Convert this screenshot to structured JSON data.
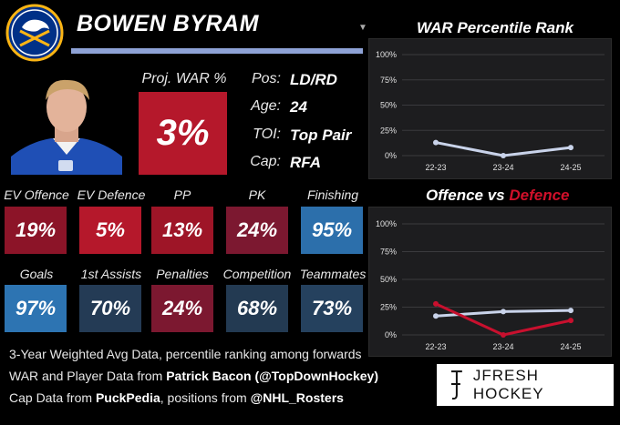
{
  "player": {
    "name": "BOWEN BYRAM"
  },
  "team_logo": {
    "icon": "sabres-logo-icon",
    "colors": {
      "navy": "#003087",
      "gold": "#fcb514"
    }
  },
  "proj_war": {
    "label": "Proj. WAR %",
    "value": "3%"
  },
  "info": [
    {
      "label": "Pos:",
      "value": "LD/RD"
    },
    {
      "label": "Age:",
      "value": "24"
    },
    {
      "label": "TOI:",
      "value": "Top Pair"
    },
    {
      "label": "Cap:",
      "value": "RFA"
    }
  ],
  "stats": [
    {
      "label": "EV Offence",
      "value": "19%",
      "color": "#8c1428"
    },
    {
      "label": "EV Defence",
      "value": "5%",
      "color": "#b5182b"
    },
    {
      "label": "PP",
      "value": "13%",
      "color": "#9e1527"
    },
    {
      "label": "PK",
      "value": "24%",
      "color": "#7c1830"
    },
    {
      "label": "Finishing",
      "value": "95%",
      "color": "#2c6fab"
    },
    {
      "label": "Goals",
      "value": "97%",
      "color": "#2d74b2"
    },
    {
      "label": "1st Assists",
      "value": "70%",
      "color": "#243b55"
    },
    {
      "label": "Penalties",
      "value": "24%",
      "color": "#7c1830"
    },
    {
      "label": "Competition",
      "value": "68%",
      "color": "#233a52"
    },
    {
      "label": "Teammates",
      "value": "73%",
      "color": "#25415e"
    }
  ],
  "footnotes": {
    "line1": "3-Year Weighted Avg Data, percentile ranking among forwards",
    "line2_prefix": "WAR and Player Data from ",
    "line2_bold": "Patrick Bacon (@TopDownHockey)",
    "line3_prefix": "Cap Data from ",
    "line3_bold": "PuckPedia",
    "line3_suffix": ", positions from ",
    "line3_bold2": "@NHL_Rosters"
  },
  "brand": {
    "text": "JFRESH HOCKEY"
  },
  "war_chart": {
    "title": "WAR Percentile Rank"
  },
  "ovd_chart": {
    "title_part1": "Offence",
    "title_part2": " vs ",
    "title_part3": "Defence"
  },
  "chart_data": [
    {
      "type": "line",
      "title": "WAR Percentile Rank",
      "categories": [
        "22-23",
        "23-24",
        "24-25"
      ],
      "series": [
        {
          "name": "WAR",
          "values": [
            13,
            0,
            8
          ],
          "color": "#c9d3ea"
        }
      ],
      "y_ticks": [
        "0%",
        "25%",
        "50%",
        "75%",
        "100%"
      ],
      "ylim": [
        0,
        100
      ]
    },
    {
      "type": "line",
      "title": "Offence vs Defence",
      "categories": [
        "22-23",
        "23-24",
        "24-25"
      ],
      "series": [
        {
          "name": "Offence",
          "values": [
            17,
            21,
            22
          ],
          "color": "#c9d3ea"
        },
        {
          "name": "Defence",
          "values": [
            28,
            0,
            13
          ],
          "color": "#c8102e"
        }
      ],
      "y_ticks": [
        "0%",
        "25%",
        "50%",
        "75%",
        "100%"
      ],
      "ylim": [
        0,
        100
      ]
    }
  ]
}
